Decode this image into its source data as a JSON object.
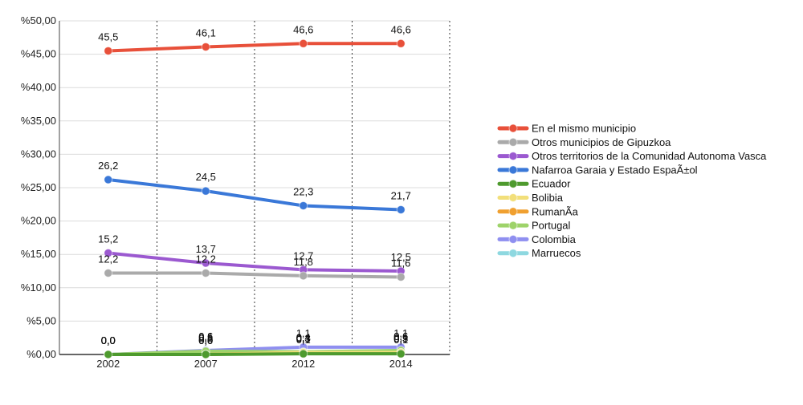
{
  "chart_data": {
    "type": "line",
    "title": "",
    "xlabel": "",
    "ylabel": "",
    "categories": [
      "2002",
      "2007",
      "2012",
      "2014"
    ],
    "ylim": [
      0,
      50
    ],
    "y_ticks": [
      0,
      5,
      10,
      15,
      20,
      25,
      30,
      35,
      40,
      45,
      50
    ],
    "y_tick_labels": [
      "%0,00",
      "%5,00",
      "%10,00",
      "%15,00",
      "%20,00",
      "%25,00",
      "%30,00",
      "%35,00",
      "%40,00",
      "%45,00",
      "%50,00"
    ],
    "grid": true,
    "legend_position": "right",
    "series": [
      {
        "name": "En el mismo municipio",
        "color": "#e8503a",
        "values": [
          45.5,
          46.1,
          46.6,
          46.6
        ],
        "labels": [
          "45,5",
          "46,1",
          "46,6",
          "46,6"
        ]
      },
      {
        "name": "Otros municipios de Gipuzkoa",
        "color": "#aaaaaa",
        "values": [
          12.2,
          12.2,
          11.8,
          11.6
        ],
        "labels": [
          "12,2",
          "12,2",
          "11,8",
          "11,6"
        ]
      },
      {
        "name": "Otros territorios de la Comunidad Autonoma Vasca",
        "color": "#9b59d0",
        "values": [
          15.2,
          13.7,
          12.7,
          12.5
        ],
        "labels": [
          "15,2",
          "13,7",
          "12,7",
          "12,5"
        ]
      },
      {
        "name": "Nafarroa Garaia y Estado EspaÃ±ol",
        "color": "#3a78d8",
        "values": [
          26.2,
          24.5,
          22.3,
          21.7
        ],
        "labels": [
          "26,2",
          "24,5",
          "22,3",
          "21,7"
        ]
      },
      {
        "name": "Ecuador",
        "color": "#4e9a2e",
        "values": [
          0.0,
          0.0,
          0.1,
          0.1
        ],
        "labels": [
          "0,0",
          "0,0",
          "0,1",
          "0,1"
        ]
      },
      {
        "name": "Bolibia",
        "color": "#f2df7a",
        "values": [
          0.0,
          0.0,
          0.3,
          0.3
        ],
        "labels": [
          "0,0",
          "0,0",
          "0,3",
          "0,3"
        ]
      },
      {
        "name": "RumanÃ­a",
        "color": "#f0a030",
        "values": [
          0.0,
          0.0,
          0.3,
          0.3
        ],
        "labels": [
          "0,0",
          "0,0",
          "0,3",
          "0,3"
        ]
      },
      {
        "name": "Portugal",
        "color": "#9ed36a",
        "values": [
          0.0,
          0.5,
          0.4,
          0.6
        ],
        "labels": [
          "0,0",
          "0,5",
          "0,4",
          "0,6"
        ]
      },
      {
        "name": "Colombia",
        "color": "#8f8ff0",
        "values": [
          0.0,
          0.6,
          1.1,
          1.1
        ],
        "labels": [
          "0,0",
          "0,6",
          "1,1",
          "1,1"
        ]
      },
      {
        "name": "Marruecos",
        "color": "#8ed8e0",
        "values": [
          0.0,
          0.3,
          0.4,
          0.6
        ],
        "labels": [
          "0,0",
          "0,3",
          "0,4",
          "0,6"
        ]
      }
    ]
  }
}
